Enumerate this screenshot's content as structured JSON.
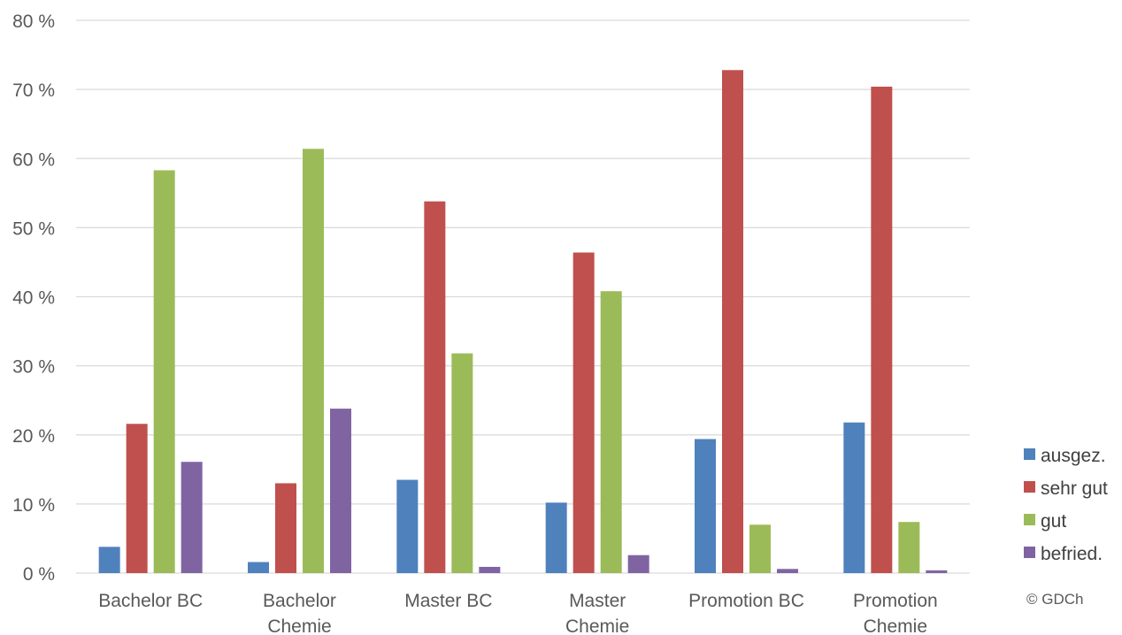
{
  "chart_data": {
    "type": "bar",
    "categories": [
      [
        "Bachelor BC"
      ],
      [
        "Bachelor",
        "Chemie"
      ],
      [
        "Master BC"
      ],
      [
        "Master",
        "Chemie"
      ],
      [
        "Promotion BC"
      ],
      [
        "Promotion",
        "Chemie"
      ]
    ],
    "series": [
      {
        "name": "ausgez.",
        "color": "#4f81bd",
        "values": [
          3.8,
          1.6,
          13.5,
          10.2,
          19.4,
          21.8
        ]
      },
      {
        "name": "sehr gut",
        "color": "#c0504d",
        "values": [
          21.6,
          13.0,
          53.8,
          46.4,
          72.8,
          70.4
        ]
      },
      {
        "name": "gut",
        "color": "#9bbb59",
        "values": [
          58.3,
          61.4,
          31.8,
          40.8,
          7.0,
          7.4
        ]
      },
      {
        "name": "befried.",
        "color": "#8064a2",
        "values": [
          16.1,
          23.8,
          0.9,
          2.6,
          0.6,
          0.4
        ]
      }
    ],
    "ylim": [
      0,
      80
    ],
    "yticks": [
      "0 %",
      "10 %",
      "20 %",
      "30 %",
      "40 %",
      "50 %",
      "60 %",
      "70 %",
      "80 %"
    ],
    "ytick_values": [
      0,
      10,
      20,
      30,
      40,
      50,
      60,
      70,
      80
    ],
    "grid": true,
    "legend_position": "right",
    "gridline_color": "#d9d9d9"
  },
  "copyright": "© GDCh"
}
